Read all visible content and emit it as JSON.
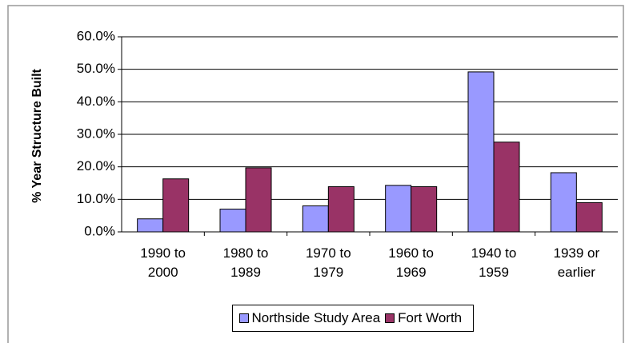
{
  "chart_data": {
    "type": "bar",
    "y_label": "% Year Structure Built",
    "categories": [
      "1990 to 2000",
      "1980 to 1989",
      "1970 to 1979",
      "1960 to 1969",
      "1940 to 1959",
      "1939 or earlier"
    ],
    "series": [
      {
        "name": "Northside Study Area",
        "color": "#9999ff",
        "values": [
          4.0,
          7.0,
          8.0,
          14.3,
          49.2,
          18.2
        ]
      },
      {
        "name": "Fort Worth",
        "color": "#993366",
        "values": [
          16.3,
          19.7,
          13.9,
          13.9,
          27.6,
          9.0
        ]
      }
    ],
    "ylim": [
      0,
      60
    ],
    "yticks": [
      {
        "value": 0,
        "label": "0.0%"
      },
      {
        "value": 10,
        "label": "10.0%"
      },
      {
        "value": 20,
        "label": "20.0%"
      },
      {
        "value": 30,
        "label": "30.0%"
      },
      {
        "value": 40,
        "label": "40.0%"
      },
      {
        "value": 50,
        "label": "50.0%"
      },
      {
        "value": 60,
        "label": "60.0%"
      }
    ],
    "grid": true,
    "legend": "bottom"
  }
}
